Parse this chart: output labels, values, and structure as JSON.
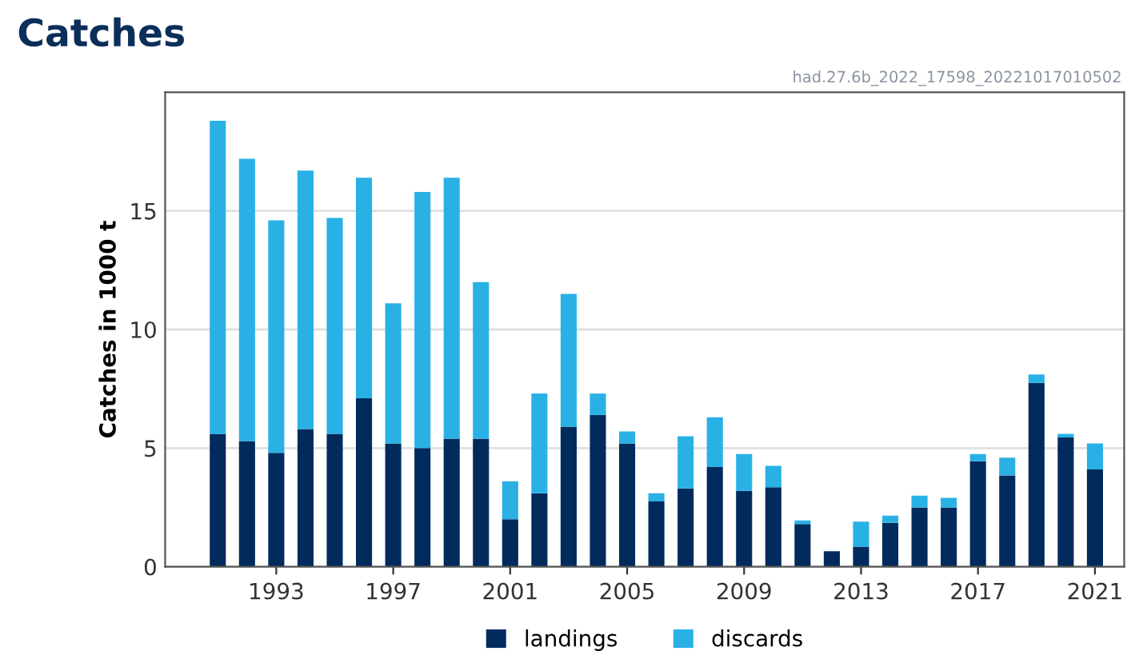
{
  "chart_data": {
    "type": "bar",
    "title": "Catches",
    "ylabel": "Catches in 1000 t",
    "annotations": [
      "had.27.6b_2022_17598_20221017010502"
    ],
    "x": [
      1991,
      1992,
      1993,
      1994,
      1995,
      1996,
      1997,
      1998,
      1999,
      2000,
      2001,
      2002,
      2003,
      2004,
      2005,
      2006,
      2007,
      2008,
      2009,
      2010,
      2011,
      2012,
      2013,
      2014,
      2015,
      2016,
      2017,
      2018,
      2019,
      2020,
      2021
    ],
    "stacked": true,
    "series": [
      {
        "name": "landings",
        "color": "#002b5c",
        "values": [
          5.6,
          5.3,
          4.8,
          5.8,
          5.6,
          7.1,
          5.2,
          5.0,
          5.4,
          5.4,
          2.0,
          3.1,
          5.9,
          6.4,
          5.2,
          2.75,
          3.3,
          4.2,
          3.2,
          3.35,
          1.8,
          0.65,
          0.85,
          1.85,
          2.5,
          2.5,
          4.45,
          3.85,
          7.75,
          5.45,
          4.1
        ]
      },
      {
        "name": "discards",
        "color": "#29b1e6",
        "values": [
          13.2,
          11.9,
          9.8,
          10.9,
          9.1,
          9.3,
          5.9,
          10.8,
          11.0,
          6.6,
          1.6,
          4.2,
          5.6,
          0.9,
          0.5,
          0.35,
          2.2,
          2.1,
          1.55,
          0.9,
          0.15,
          0,
          1.05,
          0.3,
          0.5,
          0.4,
          0.3,
          0.75,
          0.35,
          0.15,
          1.1
        ]
      }
    ],
    "xlim": [
      1989.2,
      2022
    ],
    "xticks": [
      1993,
      1997,
      2001,
      2005,
      2009,
      2013,
      2017,
      2021
    ],
    "ylim": [
      0,
      20
    ],
    "yticks": [
      0,
      5,
      10,
      15
    ],
    "grid": "y",
    "legend": "bottom"
  }
}
